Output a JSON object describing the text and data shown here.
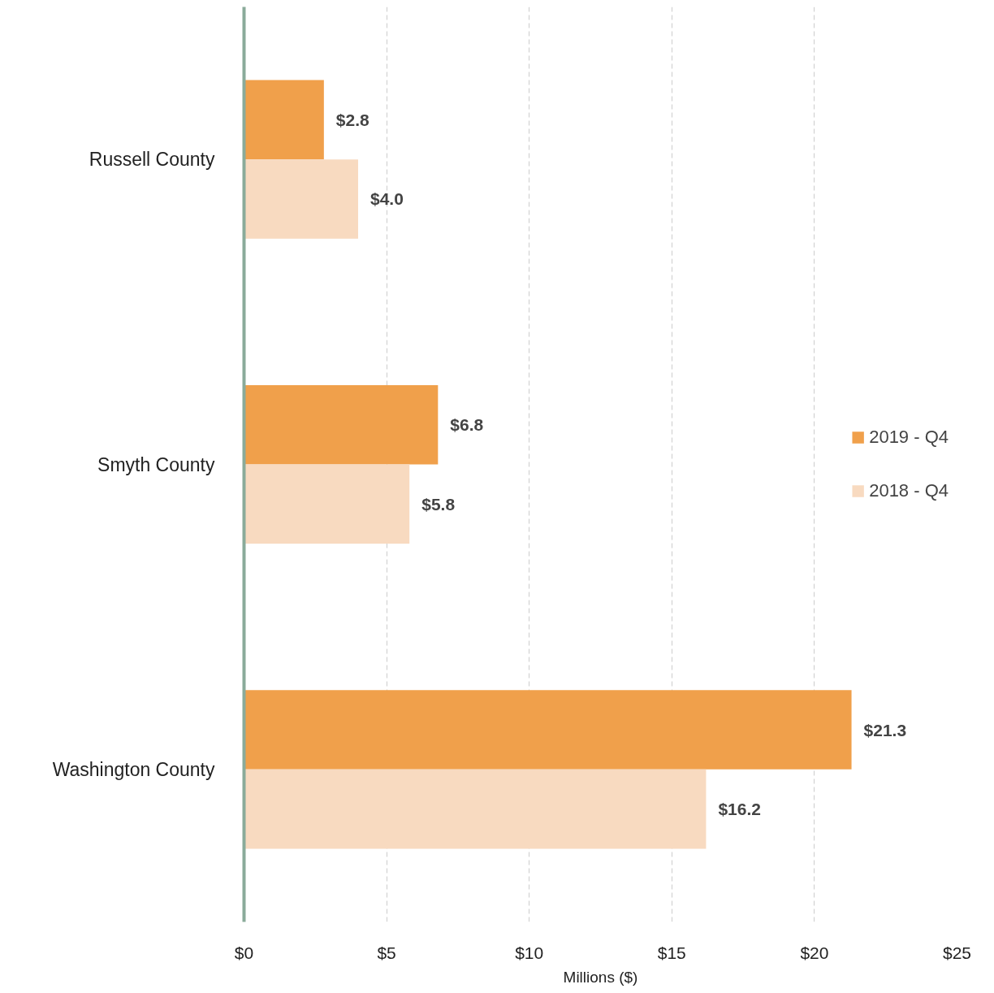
{
  "chart_data": {
    "type": "bar",
    "orientation": "horizontal",
    "categories": [
      "Russell County",
      "Smyth County",
      "Washington County"
    ],
    "series": [
      {
        "name": "2019 - Q4",
        "color": "#f0a04b",
        "values": [
          2.8,
          6.8,
          21.3
        ],
        "value_labels": [
          "$2.8",
          "$6.8",
          "$21.3"
        ]
      },
      {
        "name": "2018 - Q4",
        "color": "#f8dac0",
        "values": [
          4.0,
          5.8,
          16.2
        ],
        "value_labels": [
          "$4.0",
          "$5.8",
          "$16.2"
        ]
      }
    ],
    "xlim": [
      0,
      25
    ],
    "xticks": [
      {
        "value": 0,
        "label": "$0"
      },
      {
        "value": 5,
        "label": "$5"
      },
      {
        "value": 10,
        "label": "$10"
      },
      {
        "value": 15,
        "label": "$15"
      },
      {
        "value": 20,
        "label": "$20"
      },
      {
        "value": 25,
        "label": "$25"
      }
    ],
    "xlabel": "Millions ($)",
    "grid": "x",
    "legend": "right"
  }
}
